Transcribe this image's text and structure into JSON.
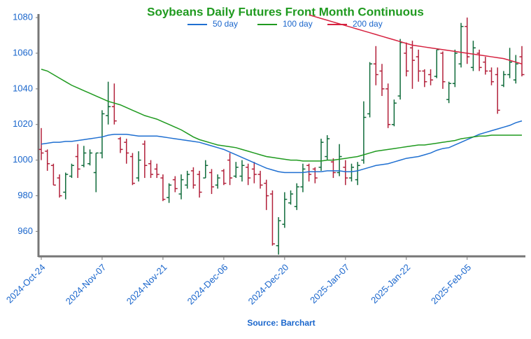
{
  "chart_data": {
    "type": "ohlc",
    "title": "Soybeans Daily Futures Front Month Continuous",
    "source": "Source: Barchart",
    "categories": [
      "2024-Oct-24",
      null,
      null,
      null,
      null,
      null,
      null,
      null,
      null,
      null,
      "2024-Nov-07",
      null,
      null,
      null,
      null,
      null,
      null,
      null,
      null,
      null,
      "2024-Nov-21",
      null,
      null,
      null,
      null,
      null,
      null,
      null,
      null,
      null,
      "2024-Dec-06",
      null,
      null,
      null,
      null,
      null,
      null,
      null,
      null,
      null,
      "2024-Dec-20",
      null,
      null,
      null,
      null,
      null,
      null,
      null,
      null,
      null,
      "2025-Jan-07",
      null,
      null,
      null,
      null,
      null,
      null,
      null,
      null,
      null,
      "2025-Jan-22",
      null,
      null,
      null,
      null,
      null,
      null,
      null,
      null,
      null,
      "2025-Feb-05",
      null,
      null,
      null,
      null,
      null,
      null,
      null,
      null,
      null
    ],
    "open": [
      1006,
      1005,
      997,
      990,
      982,
      991,
      1002,
      997,
      998,
      993,
      1004,
      1025,
      1030,
      1012,
      1010,
      1002,
      990,
      1009,
      998,
      995,
      990,
      979,
      989,
      981,
      986,
      994,
      992,
      990,
      993,
      986,
      994,
      1000,
      991,
      991,
      996,
      995,
      992,
      987,
      981,
      952,
      964,
      976,
      974,
      985,
      997,
      995,
      996,
      1002,
      999,
      993,
      996,
      990,
      989,
      1000,
      1026,
      1054,
      1050,
      1040,
      1020,
      1036,
      1060,
      1063,
      1058,
      1050,
      1048,
      1047,
      1060,
      1034,
      1043,
      1054,
      1075,
      1052,
      1060,
      1055,
      1050,
      1048,
      1042,
      1048,
      1045,
      1058
    ],
    "high": [
      1018,
      1006,
      998,
      992,
      993,
      998,
      1009,
      1008,
      1006,
      1004,
      1028,
      1044,
      1043,
      1013,
      1012,
      1004,
      1005,
      1011,
      1000,
      998,
      992,
      987,
      991,
      992,
      994,
      996,
      994,
      1000,
      995,
      992,
      995,
      1004,
      999,
      1000,
      998,
      999,
      994,
      989,
      983,
      968,
      982,
      983,
      987,
      998,
      998,
      996,
      1012,
      1014,
      1001,
      1009,
      1000,
      998,
      999,
      1033,
      1055,
      1064,
      1054,
      1043,
      1034,
      1068,
      1066,
      1067,
      1062,
      1051,
      1051,
      1062,
      1061,
      1044,
      1062,
      1077,
      1080,
      1067,
      1062,
      1058,
      1052,
      1052,
      1050,
      1063,
      1059,
      1064
    ],
    "low": [
      1000,
      994,
      986,
      979,
      978,
      990,
      990,
      996,
      997,
      982,
      1001,
      1020,
      1020,
      1004,
      998,
      986,
      988,
      990,
      990,
      990,
      977,
      976,
      982,
      978,
      984,
      984,
      979,
      990,
      981,
      984,
      986,
      986,
      990,
      988,
      986,
      987,
      984,
      972,
      952,
      947,
      962,
      975,
      972,
      982,
      988,
      987,
      994,
      1000,
      990,
      991,
      986,
      988,
      986,
      998,
      1024,
      1042,
      1036,
      1018,
      1019,
      1034,
      1047,
      1040,
      1044,
      1041,
      1042,
      1046,
      1040,
      1032,
      1041,
      1052,
      1054,
      1050,
      1050,
      1048,
      1042,
      1026,
      1041,
      1046,
      1043,
      1047
    ],
    "close": [
      1004,
      998,
      986,
      980,
      992,
      997,
      995,
      1004,
      1004,
      1004,
      1026,
      1030,
      1022,
      1006,
      1004,
      987,
      1000,
      997,
      992,
      992,
      978,
      986,
      984,
      989,
      992,
      986,
      982,
      997,
      985,
      990,
      987,
      990,
      996,
      997,
      990,
      992,
      986,
      980,
      953,
      966,
      978,
      981,
      985,
      995,
      992,
      990,
      1010,
      1012,
      993,
      1002,
      990,
      996,
      997,
      1024,
      1054,
      1048,
      1040,
      1020,
      1032,
      1066,
      1050,
      1056,
      1050,
      1044,
      1045,
      1062,
      1044,
      1043,
      1060,
      1075,
      1058,
      1063,
      1052,
      1050,
      1044,
      1028,
      1048,
      1055,
      1054,
      1048
    ],
    "up_color": "#0f6b3a",
    "down_color": "#b2203a",
    "series": [
      {
        "name": "50 day",
        "color": "#1f6fd1",
        "values": [
          1009,
          1009.5,
          1010,
          1010,
          1010.5,
          1010.5,
          1011,
          1011.5,
          1012,
          1012.5,
          1013,
          1014,
          1014.5,
          1014.5,
          1014.5,
          1014,
          1013.5,
          1013.5,
          1013.5,
          1013.5,
          1013,
          1012.5,
          1012,
          1011.5,
          1011,
          1010.5,
          1010,
          1009,
          1008,
          1007,
          1006,
          1004.5,
          1003,
          1001.5,
          1000,
          998.5,
          997,
          995.5,
          994.5,
          993.5,
          993,
          993,
          993,
          993,
          993.5,
          993.5,
          993.5,
          994,
          994,
          994,
          993.5,
          993.5,
          994,
          995,
          996,
          997,
          997.5,
          998,
          999,
          1000,
          1001,
          1001.5,
          1002,
          1003,
          1004,
          1005.5,
          1006.5,
          1007,
          1008.5,
          1010,
          1011.5,
          1013,
          1014.5,
          1015.5,
          1016.5,
          1017.5,
          1018.5,
          1019.5,
          1021,
          1022
        ]
      },
      {
        "name": "100 day",
        "color": "#1f9a1f",
        "values": [
          1051,
          1050,
          1048,
          1046,
          1044,
          1042,
          1040.5,
          1039,
          1037.5,
          1036,
          1034.5,
          1033,
          1032,
          1031,
          1029.5,
          1028,
          1026.5,
          1025,
          1024,
          1023,
          1021.5,
          1020,
          1018.5,
          1017,
          1015,
          1013,
          1011.5,
          1010.5,
          1009.5,
          1008.5,
          1008,
          1007.5,
          1007,
          1006,
          1005,
          1004,
          1003,
          1002,
          1001.5,
          1001,
          1000.5,
          1000,
          1000,
          999.5,
          999.5,
          999.5,
          999.5,
          1000,
          1000,
          1000.5,
          1001,
          1001.5,
          1002,
          1003,
          1004,
          1005,
          1005.5,
          1006,
          1006.5,
          1007,
          1007.5,
          1008,
          1008.5,
          1008.5,
          1009,
          1009.5,
          1010,
          1010.5,
          1011,
          1012,
          1012.5,
          1013,
          1013.5,
          1013.5,
          1014,
          1014,
          1014,
          1014,
          1014,
          1014
        ]
      },
      {
        "name": "200 day",
        "color": "#d6213f",
        "values": [
          null,
          null,
          null,
          null,
          null,
          null,
          null,
          null,
          null,
          null,
          null,
          null,
          null,
          null,
          null,
          null,
          null,
          null,
          null,
          null,
          null,
          null,
          null,
          null,
          null,
          null,
          null,
          null,
          null,
          null,
          null,
          null,
          null,
          null,
          null,
          null,
          null,
          null,
          null,
          null,
          null,
          null,
          null,
          null,
          1081.5,
          1080.5,
          1079.5,
          1078.5,
          1077.5,
          1076.5,
          1075.5,
          1074.5,
          1073.5,
          1072.5,
          1071.5,
          1070.5,
          1069.5,
          1068.5,
          1067.5,
          1066.5,
          1065.5,
          1064.5,
          1064,
          1063.5,
          1063,
          1062.5,
          1062,
          1061.5,
          1061,
          1060.5,
          1060,
          1059.5,
          1059,
          1058.5,
          1058,
          1057.5,
          1057,
          1056,
          1055,
          1054
        ]
      }
    ],
    "ylim": [
      946,
      1082
    ],
    "yticks": [
      960,
      980,
      1000,
      1020,
      1040,
      1060,
      1080
    ]
  }
}
